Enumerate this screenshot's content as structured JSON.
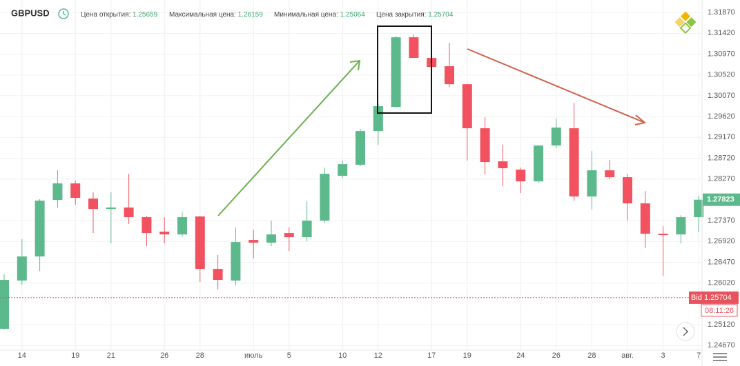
{
  "chart_data": {
    "type": "candlestick",
    "title": "GBPUSD",
    "stats": [
      {
        "label": "Цена открытия:",
        "value": 1.25659
      },
      {
        "label": "Максимальная цена:",
        "value": 1.26159
      },
      {
        "label": "Минимальная цена:",
        "value": 1.25064
      },
      {
        "label": "Цена закрытия:",
        "value": 1.25704
      }
    ],
    "categories": [
      null,
      "14",
      null,
      null,
      "19",
      null,
      "21",
      null,
      null,
      "26",
      null,
      "28",
      null,
      null,
      "июль",
      null,
      "5",
      null,
      null,
      "10",
      null,
      "12",
      null,
      null,
      "17",
      null,
      "19",
      null,
      null,
      "24",
      null,
      "26",
      null,
      "28",
      null,
      "авг.",
      null,
      "3",
      null,
      "7"
    ],
    "open": [
      1.25031,
      1.26074,
      1.26595,
      1.27817,
      1.28175,
      1.27847,
      1.27623,
      1.27653,
      1.27445,
      1.27132,
      1.27072,
      1.2746,
      1.26327,
      1.26074,
      1.26953,
      1.26893,
      1.27102,
      1.27013,
      1.2737,
      1.28339,
      1.28577,
      1.29307,
      1.29829,
      1.31334,
      1.30887,
      1.30708,
      1.3032,
      1.29367,
      1.28652,
      1.28473,
      1.28219,
      1.28994,
      1.29367,
      1.27892,
      1.28458,
      1.28309,
      1.27743,
      1.27087,
      1.27072,
      1.27445
    ],
    "high": [
      1.26208,
      1.26968,
      1.27832,
      1.28458,
      1.28234,
      1.27981,
      1.27981,
      1.28383,
      1.27474,
      1.27445,
      1.27549,
      1.27474,
      1.26625,
      1.27221,
      1.27176,
      1.2737,
      1.27221,
      1.27787,
      1.28517,
      1.28666,
      1.29352,
      1.29903,
      1.31363,
      1.31393,
      1.30916,
      1.31214,
      1.3032,
      1.29605,
      1.29009,
      1.28517,
      1.28994,
      1.29575,
      1.29918,
      1.28875,
      1.28681,
      1.28383,
      1.28011,
      1.27251,
      1.27489,
      1.27907
    ],
    "low": [
      1.25016,
      1.25984,
      1.26282,
      1.27653,
      1.27713,
      1.27102,
      1.26878,
      1.27296,
      1.26819,
      1.26878,
      1.27027,
      1.26044,
      1.2588,
      1.2597,
      1.26551,
      1.26819,
      1.26715,
      1.26923,
      1.27325,
      1.28294,
      1.28547,
      1.29009,
      1.29799,
      1.30887,
      1.30529,
      1.30261,
      1.28666,
      1.28368,
      1.28115,
      1.27966,
      1.2819,
      1.28935,
      1.27802,
      1.27609,
      1.28264,
      1.2737,
      1.26774,
      1.26178,
      1.26878,
      1.27117
    ],
    "close": [
      1.26089,
      1.26595,
      1.27802,
      1.28175,
      1.27862,
      1.27623,
      1.27653,
      1.27445,
      1.27102,
      1.27072,
      1.27445,
      1.26327,
      1.26089,
      1.26908,
      1.26893,
      1.27072,
      1.27013,
      1.2737,
      1.28383,
      1.28592,
      1.29307,
      1.29844,
      1.31334,
      1.30887,
      1.30693,
      1.3032,
      1.29367,
      1.28637,
      1.28503,
      1.28219,
      1.28994,
      1.29382,
      1.27892,
      1.28458,
      1.28309,
      1.27743,
      1.27087,
      1.27057,
      1.27445,
      1.27823
    ],
    "up_color": "#5cb98c",
    "down_color": "#f2525f",
    "ylim": [
      1.2457,
      1.3214
    ],
    "yticks": [
      {
        "value": 1.2467,
        "label": "1.24670"
      },
      {
        "value": 1.2512,
        "label": "1.25120"
      },
      {
        "value": 1.2602,
        "label": "1.26020"
      },
      {
        "value": 1.2647,
        "label": "1.26470"
      },
      {
        "value": 1.2692,
        "label": "1.26920"
      },
      {
        "value": 1.2737,
        "label": "1.27370"
      },
      {
        "value": 1.2827,
        "label": "1.28270"
      },
      {
        "value": 1.2872,
        "label": "1.28720"
      },
      {
        "value": 1.2917,
        "label": "1.29170"
      },
      {
        "value": 1.2962,
        "label": "1.29620"
      },
      {
        "value": 1.3007,
        "label": "1.30070"
      },
      {
        "value": 1.3052,
        "label": "1.30520"
      },
      {
        "value": 1.3097,
        "label": "1.30970"
      },
      {
        "value": 1.3142,
        "label": "1.31420"
      },
      {
        "value": 1.3187,
        "label": "1.31870"
      }
    ],
    "bid": {
      "label": "Bid",
      "value": 1.25704
    },
    "countdown": "08:11:26",
    "grid": true
  }
}
